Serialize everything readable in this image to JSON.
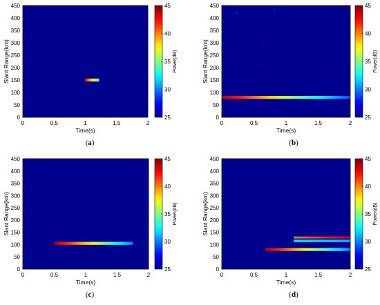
{
  "chart_data": [
    {
      "type": "heatmap",
      "panel_label": "a",
      "xlabel": "Time(s)",
      "ylabel": "Slant Range(km)",
      "xlim": [
        0,
        2
      ],
      "ylim": [
        0,
        450
      ],
      "xticks": [
        "0",
        "0.5",
        "1",
        "1.5",
        "2"
      ],
      "yticks": [
        "0",
        "50",
        "100",
        "150",
        "200",
        "250",
        "300",
        "350",
        "400",
        "450"
      ],
      "colorbar": {
        "label": "Power(dB)",
        "range": [
          25,
          45
        ],
        "ticks": [
          "25",
          "30",
          "35",
          "40",
          "45"
        ]
      },
      "background_power_db": 25,
      "features": [
        {
          "kind": "echo",
          "x_start": 1.0,
          "x_end": 1.22,
          "y_center": 150,
          "y_thickness": 12,
          "power_start_db": 42,
          "power_end_db": 34
        }
      ],
      "speckles": []
    },
    {
      "type": "heatmap",
      "panel_label": "b",
      "xlabel": "Time(s)",
      "ylabel": "Slant Range(km)",
      "xlim": [
        0,
        2
      ],
      "ylim": [
        0,
        450
      ],
      "xticks": [
        "0",
        "0.5",
        "1",
        "1.5",
        "2"
      ],
      "yticks": [
        "0",
        "50",
        "100",
        "150",
        "200",
        "250",
        "300",
        "350",
        "400",
        "450"
      ],
      "colorbar": {
        "label": "Power(dB)",
        "range": [
          25,
          45
        ],
        "ticks": [
          "25",
          "30",
          "35",
          "40",
          "45"
        ]
      },
      "background_power_db": 25,
      "features": [
        {
          "kind": "echo",
          "x_start": 0.0,
          "x_end": 2.0,
          "y_center": 80,
          "y_thickness": 12,
          "power_start_db": 44,
          "power_end_db": 29
        }
      ],
      "speckles": [
        {
          "x": 0.23,
          "y": 420,
          "power_db": 28
        },
        {
          "x": 0.82,
          "y": 432,
          "power_db": 28
        },
        {
          "x": 0.63,
          "y": 300,
          "power_db": 27
        },
        {
          "x": 0.78,
          "y": 283,
          "power_db": 27
        },
        {
          "x": 0.58,
          "y": 212,
          "power_db": 27
        },
        {
          "x": 1.73,
          "y": 198,
          "power_db": 27
        }
      ]
    },
    {
      "type": "heatmap",
      "panel_label": "c",
      "xlabel": "Time(s)",
      "ylabel": "Slant Range(km)",
      "xlim": [
        0,
        2
      ],
      "ylim": [
        0,
        450
      ],
      "xticks": [
        "0",
        "0.5",
        "1",
        "1.5",
        "2"
      ],
      "yticks": [
        "0",
        "50",
        "100",
        "150",
        "200",
        "250",
        "300",
        "350",
        "400",
        "450"
      ],
      "colorbar": {
        "label": "Power(dB)",
        "range": [
          25,
          45
        ],
        "ticks": [
          "25",
          "30",
          "35",
          "40",
          "45"
        ]
      },
      "background_power_db": 25,
      "features": [
        {
          "kind": "echo",
          "x_start": 0.5,
          "x_end": 1.75,
          "y_center": 105,
          "y_thickness": 12,
          "power_start_db": 44,
          "power_end_db": 30
        }
      ],
      "speckles": []
    },
    {
      "type": "heatmap",
      "panel_label": "d",
      "xlabel": "Time(s)",
      "ylabel": "Slant Range(km)",
      "xlim": [
        0,
        2
      ],
      "ylim": [
        0,
        450
      ],
      "xticks": [
        "0",
        "0.5",
        "1",
        "1.5",
        "2"
      ],
      "yticks": [
        "0",
        "50",
        "100",
        "150",
        "200",
        "250",
        "300",
        "350",
        "400",
        "450"
      ],
      "colorbar": {
        "label": "Power(dB)",
        "range": [
          25,
          45
        ],
        "ticks": [
          "25",
          "30",
          "35",
          "40",
          "45"
        ]
      },
      "background_power_db": 25,
      "features": [
        {
          "kind": "echo",
          "x_start": 0.68,
          "x_end": 2.0,
          "y_center": 80,
          "y_thickness": 12,
          "power_start_db": 44,
          "power_end_db": 30
        },
        {
          "kind": "echo",
          "x_start": 1.12,
          "x_end": 2.0,
          "y_center": 115,
          "y_thickness": 10,
          "power_start_db": 32,
          "power_end_db": 31
        },
        {
          "kind": "echo",
          "x_start": 1.12,
          "x_end": 2.0,
          "y_center": 129,
          "y_thickness": 8,
          "power_start_db": 40,
          "power_end_db": 43
        }
      ],
      "speckles": []
    }
  ]
}
